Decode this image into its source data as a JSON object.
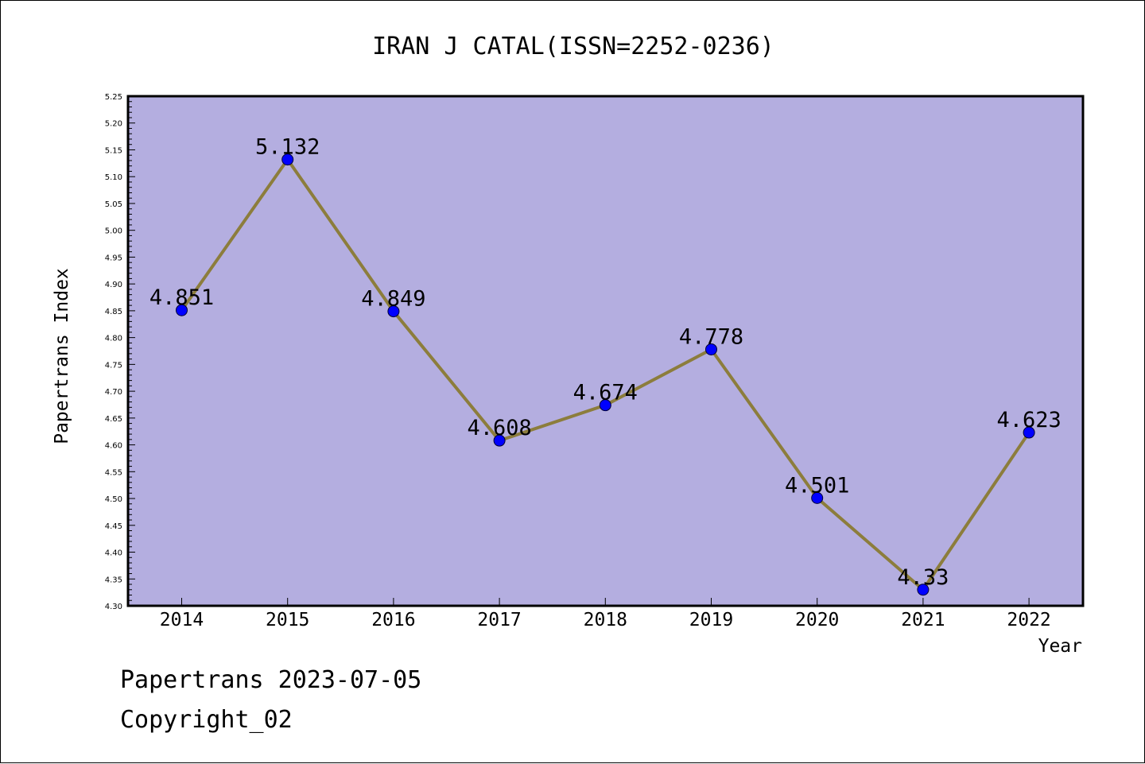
{
  "chart_data": {
    "type": "line",
    "title": "IRAN J CATAL(ISSN=2252-0236)",
    "xlabel": "Year",
    "ylabel": "Papertrans Index",
    "categories": [
      "2014",
      "2015",
      "2016",
      "2017",
      "2018",
      "2019",
      "2020",
      "2021",
      "2022"
    ],
    "values": [
      4.851,
      5.132,
      4.849,
      4.608,
      4.674,
      4.778,
      4.501,
      4.33,
      4.623
    ],
    "data_labels": [
      "4.851",
      "5.132",
      "4.849",
      "4.608",
      "4.674",
      "4.778",
      "4.501",
      "4.33",
      "4.623"
    ],
    "ylim": [
      4.3,
      5.25
    ],
    "yticks": [
      "4.30",
      "4.35",
      "4.40",
      "4.45",
      "4.50",
      "4.55",
      "4.60",
      "4.65",
      "4.70",
      "4.75",
      "4.80",
      "4.85",
      "4.90",
      "4.95",
      "5.00",
      "5.05",
      "5.10",
      "5.15",
      "5.20",
      "5.25"
    ],
    "grid": false,
    "colors": {
      "plot_background": "#b4aee0",
      "line": "#8c7d3c",
      "marker": "#0000ff"
    }
  },
  "footer": {
    "line1": "Papertrans 2023-07-05",
    "line2": "Copyright_02"
  }
}
